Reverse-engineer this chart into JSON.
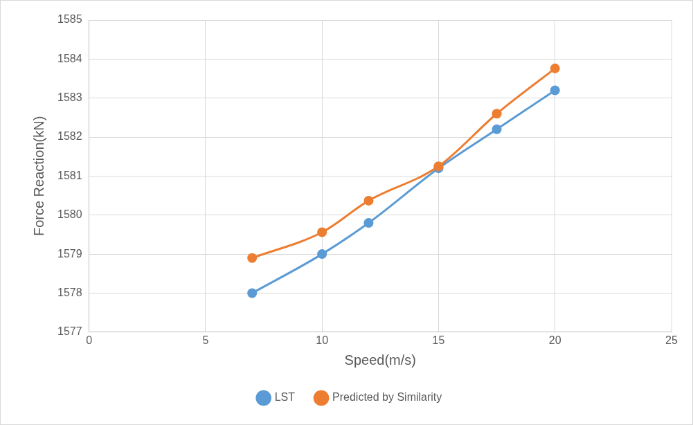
{
  "chart_data": {
    "type": "line",
    "xlabel": "Speed(m/s)",
    "ylabel": "Force Reaction(kN)",
    "x": [
      7,
      10,
      12,
      15,
      17.5,
      20
    ],
    "series": [
      {
        "name": "LST",
        "color": "#5b9bd5",
        "values": [
          1578.0,
          1579.0,
          1579.8,
          1581.2,
          1582.2,
          1583.2
        ]
      },
      {
        "name": "Predicted by Similarity",
        "color": "#ed7d31",
        "values": [
          1578.9,
          1579.56,
          1580.37,
          1581.25,
          1582.6,
          1583.76
        ]
      }
    ],
    "xlim": [
      0,
      25
    ],
    "xticks": [
      0,
      5,
      10,
      15,
      20,
      25
    ],
    "ylim": [
      1577,
      1585
    ],
    "yticks": [
      1577,
      1578,
      1579,
      1580,
      1581,
      1582,
      1583,
      1584,
      1585
    ],
    "grid": true,
    "legend": "bottom",
    "marker": "circle",
    "line_style": "solid"
  }
}
